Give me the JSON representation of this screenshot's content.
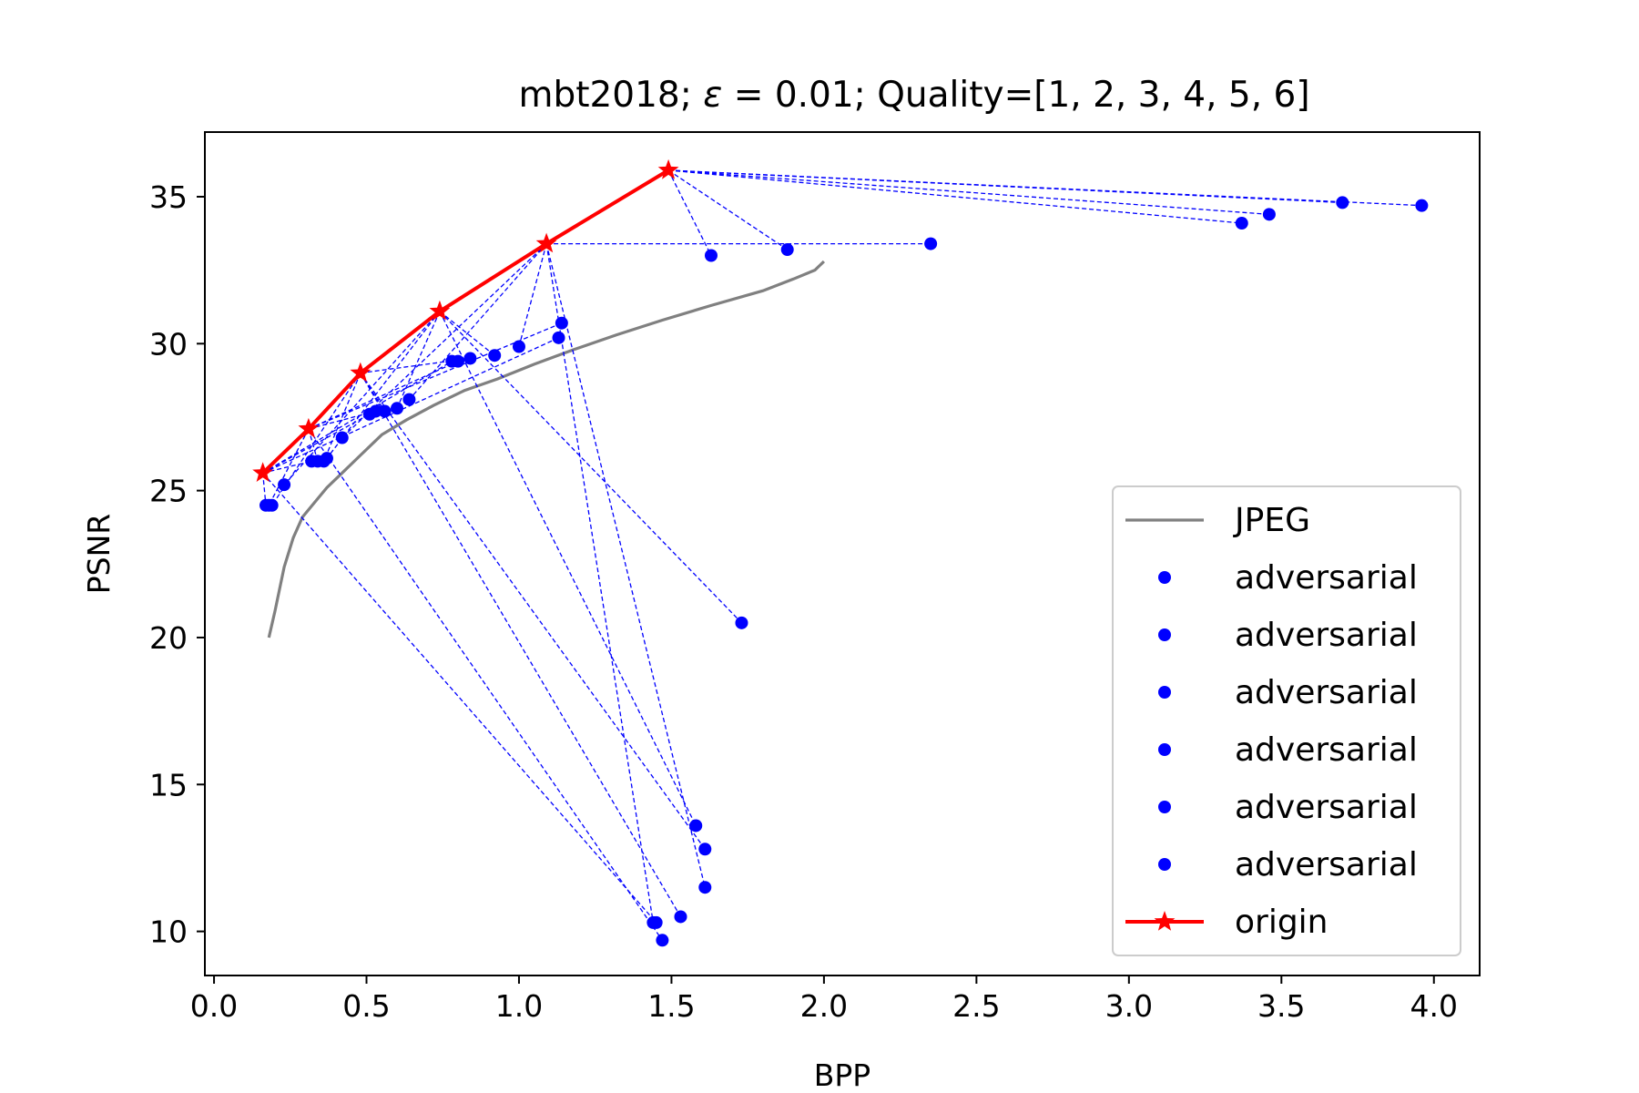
{
  "chart_data": {
    "type": "scatter",
    "title_prefix": "mbt2018; ",
    "title_epsilon": "ε",
    "title_suffix": " = 0.01; Quality=[1, 2, 3, 4, 5, 6]",
    "xlabel": "BPP",
    "ylabel": "PSNR",
    "xlim": [
      -0.03,
      4.15
    ],
    "ylim": [
      8.5,
      37.2
    ],
    "xticks": [
      "0.0",
      "0.5",
      "1.0",
      "1.5",
      "2.0",
      "2.5",
      "3.0",
      "3.5",
      "4.0"
    ],
    "yticks": [
      "10",
      "15",
      "20",
      "25",
      "30",
      "35"
    ],
    "grid": false,
    "legend_position": "lower-right",
    "colors": {
      "jpeg": "#808080",
      "adversarial": "#0000ff",
      "origin": "#ff0000"
    },
    "jpeg": {
      "name": "JPEG",
      "x": [
        0.18,
        0.2,
        0.23,
        0.26,
        0.29,
        0.33,
        0.37,
        0.42,
        0.48,
        0.55,
        0.63,
        0.72,
        0.82,
        0.93,
        1.05,
        1.18,
        1.32,
        1.47,
        1.63,
        1.8,
        1.9,
        1.97,
        2.0
      ],
      "y": [
        20.0,
        20.9,
        22.4,
        23.4,
        24.1,
        24.6,
        25.1,
        25.6,
        26.2,
        26.9,
        27.4,
        27.9,
        28.4,
        28.8,
        29.3,
        29.8,
        30.3,
        30.8,
        31.3,
        31.8,
        32.2,
        32.5,
        32.8
      ]
    },
    "origin": {
      "name": "origin",
      "x": [
        0.16,
        0.31,
        0.48,
        0.74,
        1.09,
        1.49
      ],
      "y": [
        25.6,
        27.1,
        29.0,
        31.1,
        33.4,
        35.9
      ]
    },
    "adversarial": [
      {
        "name": "adversarial",
        "x": [
          0.17,
          0.18,
          0.19,
          0.23,
          1.44,
          3.37
        ],
        "y": [
          24.5,
          24.5,
          24.5,
          25.2,
          10.3,
          34.1
        ]
      },
      {
        "name": "adversarial",
        "x": [
          0.32,
          0.34,
          0.36,
          0.37,
          0.42,
          3.46
        ],
        "y": [
          26.0,
          26.0,
          26.0,
          26.1,
          26.8,
          34.4
        ]
      },
      {
        "name": "adversarial",
        "x": [
          0.51,
          0.53,
          0.56,
          0.6,
          0.64,
          3.7
        ],
        "y": [
          27.6,
          27.7,
          27.7,
          27.8,
          28.1,
          34.8
        ]
      },
      {
        "name": "adversarial",
        "x": [
          0.78,
          0.8,
          0.84,
          0.92,
          1.0,
          1.63
        ],
        "y": [
          29.4,
          29.4,
          29.5,
          29.6,
          29.9,
          33.0
        ]
      },
      {
        "name": "adversarial",
        "x": [
          1.45,
          1.47,
          1.53,
          1.58,
          1.61,
          1.88
        ],
        "y": [
          10.3,
          9.7,
          10.5,
          13.6,
          11.5,
          33.2
        ]
      },
      {
        "name": "adversarial",
        "x": [
          1.13,
          1.14,
          1.61,
          1.73,
          2.35,
          3.96
        ],
        "y": [
          30.2,
          30.7,
          12.8,
          20.5,
          33.4,
          34.7
        ]
      }
    ]
  }
}
